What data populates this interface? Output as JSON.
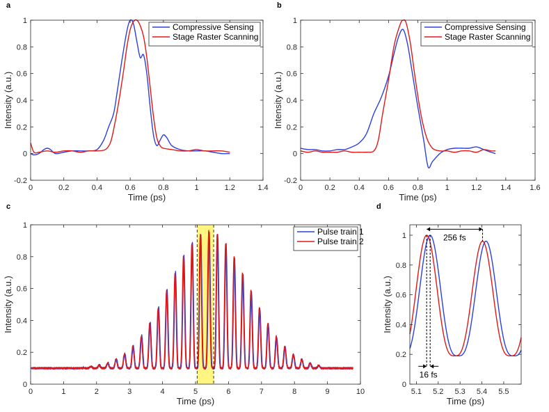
{
  "colors": {
    "blue": "#2b3fe0",
    "red": "#e01818",
    "highlight": "#fff36a",
    "axis": "#262626"
  },
  "chart_data": [
    {
      "panel": "a",
      "type": "line",
      "xlabel": "Time (ps)",
      "ylabel": "Intensity (a.u.)",
      "xlim": [
        0,
        1.4
      ],
      "ylim": [
        -0.2,
        1
      ],
      "xticks": [
        0,
        0.2,
        0.4,
        0.6,
        0.8,
        1,
        1.2,
        1.4
      ],
      "xtick_labels": [
        "0",
        "0.2",
        "0.4",
        "0.6",
        "0.8",
        "1",
        "1.2",
        "1.4"
      ],
      "yticks": [
        -0.2,
        0,
        0.2,
        0.4,
        0.6,
        0.8,
        1
      ],
      "ytick_labels": [
        "-0.2",
        "0",
        "0.2",
        "0.4",
        "0.6",
        "0.8",
        "1"
      ],
      "legend_position": "top-right",
      "series": [
        {
          "name": "Compressive Sensing",
          "color": "#2b3fe0",
          "x": [
            0,
            0.02,
            0.05,
            0.08,
            0.1,
            0.12,
            0.15,
            0.2,
            0.25,
            0.3,
            0.35,
            0.4,
            0.44,
            0.47,
            0.5,
            0.52,
            0.55,
            0.58,
            0.6,
            0.62,
            0.64,
            0.66,
            0.68,
            0.7,
            0.72,
            0.74,
            0.76,
            0.78,
            0.8,
            0.82,
            0.85,
            0.9,
            0.95,
            1.0,
            1.05,
            1.1,
            1.15,
            1.2
          ],
          "y": [
            0.0,
            -0.01,
            0.0,
            0.03,
            0.04,
            0.03,
            0.0,
            0.01,
            0.02,
            0.02,
            0.02,
            0.03,
            0.1,
            0.2,
            0.3,
            0.45,
            0.7,
            0.92,
            1.0,
            0.97,
            0.84,
            0.72,
            0.74,
            0.6,
            0.35,
            0.14,
            0.06,
            0.1,
            0.14,
            0.12,
            0.06,
            0.03,
            0.02,
            0.02,
            0.02,
            0.01,
            0.0,
            0.0
          ]
        },
        {
          "name": "Stage Raster Scanning",
          "color": "#e01818",
          "x": [
            0,
            0.02,
            0.05,
            0.1,
            0.15,
            0.2,
            0.25,
            0.3,
            0.35,
            0.4,
            0.45,
            0.48,
            0.5,
            0.53,
            0.56,
            0.58,
            0.6,
            0.62,
            0.64,
            0.66,
            0.68,
            0.7,
            0.72,
            0.74,
            0.76,
            0.78,
            0.8,
            0.85,
            0.9,
            0.95,
            1.0,
            1.05,
            1.1,
            1.15,
            1.2
          ],
          "y": [
            0.08,
            0.01,
            0.01,
            0.02,
            0.01,
            0.02,
            0.02,
            0.01,
            0.02,
            0.02,
            0.03,
            0.08,
            0.18,
            0.38,
            0.62,
            0.8,
            0.93,
            0.99,
            1.0,
            0.96,
            0.88,
            0.72,
            0.5,
            0.28,
            0.12,
            0.06,
            0.04,
            0.03,
            0.02,
            0.02,
            0.03,
            0.02,
            0.02,
            0.02,
            0.01
          ]
        }
      ]
    },
    {
      "panel": "b",
      "type": "line",
      "xlabel": "Time (ps)",
      "ylabel": "Intensity (a.u.)",
      "xlim": [
        0,
        1.6
      ],
      "ylim": [
        -0.2,
        1
      ],
      "xticks": [
        0,
        0.2,
        0.4,
        0.6,
        0.8,
        1,
        1.2,
        1.4,
        1.6
      ],
      "xtick_labels": [
        "0",
        "0.2",
        "0.4",
        "0.6",
        "0.8",
        "1",
        "1.2",
        "1.4",
        "1.6"
      ],
      "yticks": [
        -0.2,
        0,
        0.2,
        0.4,
        0.6,
        0.8,
        1
      ],
      "ytick_labels": [
        "-0.2",
        "0",
        "0.2",
        "0.4",
        "0.6",
        "0.8",
        "1"
      ],
      "legend_position": "top-right",
      "series": [
        {
          "name": "Compressive Sensing",
          "color": "#2b3fe0",
          "x": [
            0,
            0.05,
            0.1,
            0.15,
            0.2,
            0.25,
            0.3,
            0.35,
            0.4,
            0.45,
            0.5,
            0.55,
            0.6,
            0.64,
            0.67,
            0.7,
            0.73,
            0.76,
            0.8,
            0.84,
            0.87,
            0.9,
            0.95,
            1.0,
            1.05,
            1.1,
            1.15,
            1.2,
            1.25,
            1.3,
            1.33
          ],
          "y": [
            0.04,
            0.03,
            0.03,
            0.02,
            0.02,
            0.03,
            0.03,
            0.05,
            0.08,
            0.15,
            0.3,
            0.42,
            0.58,
            0.76,
            0.88,
            0.93,
            0.82,
            0.62,
            0.35,
            0.1,
            -0.1,
            -0.06,
            0.0,
            0.03,
            0.04,
            0.04,
            0.04,
            0.05,
            0.03,
            0.01,
            0.0
          ]
        },
        {
          "name": "Stage Raster Scanning",
          "color": "#e01818",
          "x": [
            0,
            0.05,
            0.1,
            0.15,
            0.2,
            0.25,
            0.3,
            0.35,
            0.4,
            0.45,
            0.5,
            0.53,
            0.56,
            0.6,
            0.64,
            0.68,
            0.7,
            0.72,
            0.75,
            0.78,
            0.82,
            0.86,
            0.9,
            0.95,
            1.0,
            1.05,
            1.1,
            1.15,
            1.2,
            1.25,
            1.3,
            1.33
          ],
          "y": [
            0.02,
            0.01,
            0.02,
            0.01,
            0.01,
            0.01,
            0.02,
            0.01,
            0.01,
            0.01,
            0.02,
            0.1,
            0.3,
            0.55,
            0.82,
            0.97,
            1.0,
            0.98,
            0.82,
            0.58,
            0.3,
            0.12,
            0.04,
            0.02,
            0.02,
            0.01,
            0.02,
            0.02,
            0.01,
            0.03,
            0.02,
            0.02
          ]
        }
      ]
    },
    {
      "panel": "c",
      "type": "line",
      "xlabel": "Time (ps)",
      "ylabel": "Intensity (a.u.)",
      "xlim": [
        0,
        10
      ],
      "ylim": [
        0,
        1
      ],
      "xticks": [
        0,
        1,
        2,
        3,
        4,
        5,
        6,
        7,
        8,
        9,
        10
      ],
      "xtick_labels": [
        "0",
        "1",
        "2",
        "3",
        "4",
        "5",
        "6",
        "7",
        "8",
        "9",
        "10"
      ],
      "yticks": [
        0,
        0.2,
        0.4,
        0.6,
        0.8,
        1
      ],
      "ytick_labels": [
        "0",
        "0.2",
        "0.4",
        "0.6",
        "0.8",
        "1"
      ],
      "legend_position": "top-right",
      "highlight_region": [
        5.05,
        5.55
      ],
      "pulse_train": {
        "period_ps": 0.256,
        "center_ps": 5.4,
        "sigma_ps": 1.2,
        "envelope_range": [
          2.0,
          8.4
        ],
        "baseline": 0.1,
        "peak": 0.96,
        "offset_ps": 0.016
      },
      "series": [
        {
          "name": "Pulse train 1",
          "color": "#2b3fe0"
        },
        {
          "name": "Pulse train 2",
          "color": "#e01818"
        }
      ]
    },
    {
      "panel": "d",
      "type": "line",
      "xlabel": "Time (ps)",
      "ylabel": "Intensity (a.u.)",
      "xlim": [
        5.07,
        5.58
      ],
      "ylim": [
        0,
        1.07
      ],
      "xticks": [
        5.1,
        5.2,
        5.3,
        5.4,
        5.5
      ],
      "xtick_labels": [
        "5.1",
        "5.2",
        "5.3",
        "5.4",
        "5.5"
      ],
      "yticks": [
        0,
        0.2,
        0.4,
        0.6,
        0.8,
        1
      ],
      "ytick_labels": [
        "0",
        "0.2",
        "0.4",
        "0.6",
        "0.8",
        "1"
      ],
      "annotations": [
        {
          "label": "256 fs",
          "from": 5.147,
          "to": 5.403,
          "y": 1.04
        },
        {
          "label": "16 fs",
          "from": 5.147,
          "to": 5.163,
          "y": 0.12
        }
      ],
      "series": [
        {
          "name": "Pulse train 1",
          "color": "#2b3fe0",
          "peak_times": [
            5.163,
            5.419
          ],
          "peak_values": [
            1.0,
            0.96
          ]
        },
        {
          "name": "Pulse train 2",
          "color": "#e01818",
          "peak_times": [
            5.147,
            5.403
          ],
          "peak_values": [
            1.0,
            0.96
          ]
        }
      ]
    }
  ]
}
